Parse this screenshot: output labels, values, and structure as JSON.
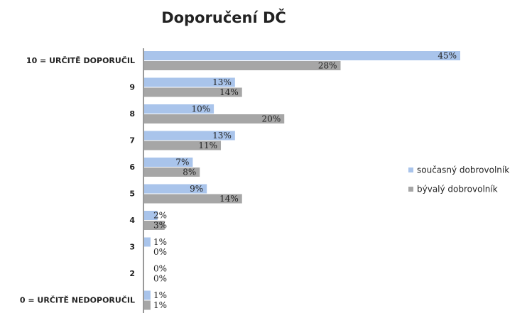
{
  "chart_data": {
    "type": "hbar",
    "title": "Doporučení DČ",
    "categories": [
      "10 = URČITĚ DOPORUČIL",
      "9",
      "8",
      "7",
      "6",
      "5",
      "4",
      "3",
      "2",
      "0 = URČITĚ NEDOPORUČIL"
    ],
    "series": [
      {
        "name": "současný dobrovolník",
        "color": "#a9c4eb",
        "values": [
          45,
          13,
          10,
          13,
          7,
          9,
          2,
          1,
          0,
          1
        ],
        "value_labels": [
          "45%",
          "13%",
          "10%",
          "13%",
          "7%",
          "9%",
          "2%",
          "1%",
          "0%",
          "1%"
        ]
      },
      {
        "name": "bývalý dobrovolník",
        "color": "#a6a6a6",
        "values": [
          28,
          14,
          20,
          11,
          8,
          14,
          3,
          0,
          0,
          1
        ],
        "value_labels": [
          "28%",
          "14%",
          "20%",
          "11%",
          "8%",
          "14%",
          "3%",
          "0%",
          "0%",
          "1%"
        ]
      }
    ],
    "legend": "right"
  }
}
